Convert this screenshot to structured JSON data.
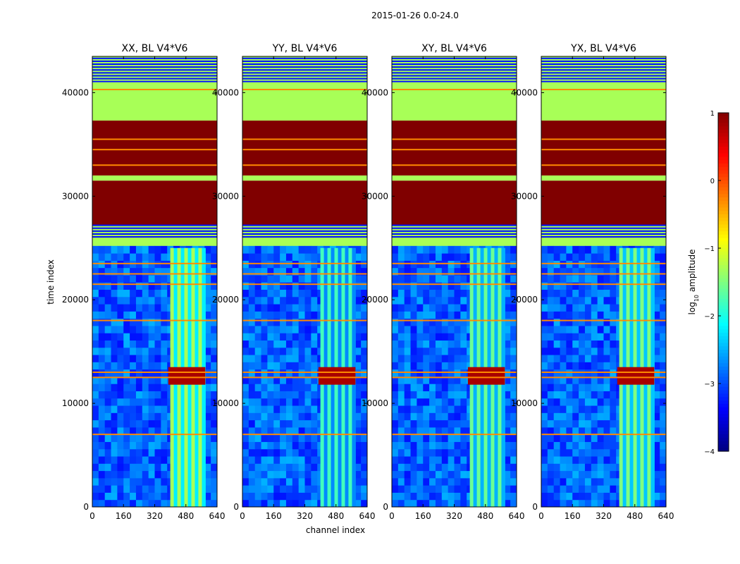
{
  "chart_data": {
    "type": "heatmap",
    "title": "2015-01-26 0.0-24.0",
    "xlabel": "channel index",
    "ylabel": "time index",
    "xlim": [
      0,
      640
    ],
    "ylim": [
      0,
      43500
    ],
    "x_ticks": [
      0,
      160,
      320,
      480,
      640
    ],
    "y_ticks": [
      0,
      10000,
      20000,
      30000,
      40000
    ],
    "panels": [
      {
        "name": "XX",
        "title": "XX, BL V4*V6"
      },
      {
        "name": "YY",
        "title": "YY, BL V4*V6"
      },
      {
        "name": "XY",
        "title": "XY, BL V4*V6"
      },
      {
        "name": "YX",
        "title": "YX, BL V4*V6"
      }
    ],
    "colorbar": {
      "label": "log10 amplitude",
      "label_main": "log",
      "label_sub": "10",
      "label_rest": " amplitude",
      "range": [
        -4,
        1
      ],
      "ticks": [
        {
          "value": 1,
          "label": "1"
        },
        {
          "value": 0,
          "label": "0"
        },
        {
          "value": -1,
          "label": "−1"
        },
        {
          "value": -2,
          "label": "−2"
        },
        {
          "value": -3,
          "label": "−3"
        },
        {
          "value": -4,
          "label": "−4"
        }
      ],
      "colormap": "jet"
    },
    "time_regions": [
      {
        "from": 41000,
        "to": 43500,
        "kind": "mixed_flagged",
        "value": -1.3
      },
      {
        "from": 37300,
        "to": 41000,
        "kind": "flagged",
        "value": -1.3
      },
      {
        "from": 32000,
        "to": 37300,
        "kind": "saturated",
        "value": 1
      },
      {
        "from": 31500,
        "to": 32000,
        "kind": "flagged",
        "value": -1.3
      },
      {
        "from": 27200,
        "to": 31500,
        "kind": "saturated",
        "value": 1
      },
      {
        "from": 26000,
        "to": 27200,
        "kind": "mixed_flagged",
        "value": -1.3
      },
      {
        "from": 25000,
        "to": 26000,
        "kind": "flagged",
        "value": -1.3
      },
      {
        "from": 0,
        "to": 25000,
        "kind": "noise",
        "value": -3.0
      }
    ],
    "rfi_channel_band": [
      400,
      580
    ],
    "rfi_time_strong": [
      11800,
      13500
    ],
    "horizontal_lines_time": [
      7000,
      12500,
      13000,
      18000,
      21500,
      22500,
      23500,
      33000,
      34500,
      35500,
      40300
    ]
  }
}
